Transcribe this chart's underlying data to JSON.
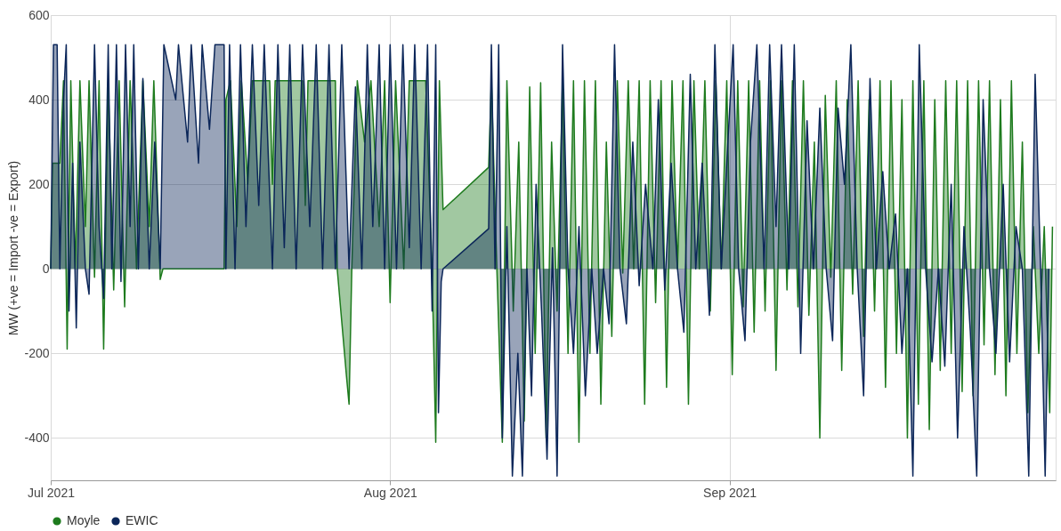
{
  "chart_data": {
    "type": "area",
    "ylabel": "MW (+ve = Import -ve = Export)",
    "ylim": [
      -500,
      600
    ],
    "yticks": [
      -400,
      -200,
      0,
      200,
      400,
      600
    ],
    "xlim": [
      "2021-07-01T00:00",
      "2021-09-30T19:00"
    ],
    "xticks": [
      {
        "value": "2021-07-01T00:00",
        "label": "Jul 2021"
      },
      {
        "value": "2021-08-01T00:00",
        "label": "Aug 2021"
      },
      {
        "value": "2021-09-01T00:00",
        "label": "Sep 2021"
      }
    ],
    "grid": true,
    "legend": "bottom",
    "marker": "none",
    "series": [
      {
        "name": "Moyle",
        "color": "#1e7b1e",
        "x": [
          "2021-07-01T00:00",
          "2021-07-01T04:00",
          "2021-07-01T20:00",
          "2021-07-02T04:00",
          "2021-07-02T12:00",
          "2021-07-02T20:00",
          "2021-07-03T06:00",
          "2021-07-03T16:00",
          "2021-07-04T04:00",
          "2021-07-04T12:00",
          "2021-07-05T00:00",
          "2021-07-05T10:00",
          "2021-07-05T20:00",
          "2021-07-06T06:00",
          "2021-07-06T18:00",
          "2021-07-07T06:00",
          "2021-07-07T18:00",
          "2021-07-08T06:00",
          "2021-07-08T20:00",
          "2021-07-09T10:00",
          "2021-07-10T00:00",
          "2021-07-10T10:00",
          "2021-07-11T00:00",
          "2021-07-11T06:00",
          "2021-07-16T20:00",
          "2021-07-17T00:00",
          "2021-07-17T10:00",
          "2021-07-18T00:00",
          "2021-07-18T10:00",
          "2021-07-19T00:00",
          "2021-07-19T10:00",
          "2021-07-21T00:00",
          "2021-07-21T06:00",
          "2021-07-21T12:00",
          "2021-07-24T00:00",
          "2021-07-24T06:00",
          "2021-07-24T12:00",
          "2021-07-27T00:00",
          "2021-07-27T04:00",
          "2021-07-28T00:00",
          "2021-07-28T06:00",
          "2021-07-28T12:00",
          "2021-07-29T00:00",
          "2021-07-29T16:00",
          "2021-07-30T06:00",
          "2021-07-31T00:00",
          "2021-07-31T12:00",
          "2021-08-01T00:00",
          "2021-08-01T12:00",
          "2021-08-02T06:00",
          "2021-08-02T18:00",
          "2021-08-03T12:00",
          "2021-08-04T06:00",
          "2021-08-04T20:00",
          "2021-08-05T04:00",
          "2021-08-05T12:00",
          "2021-08-05T20:00",
          "2021-08-10T00:00",
          "2021-08-10T06:00",
          "2021-08-10T18:00",
          "2021-08-11T06:00",
          "2021-08-11T16:00",
          "2021-08-12T06:00",
          "2021-08-12T18:00",
          "2021-08-13T06:00",
          "2021-08-13T18:00",
          "2021-08-14T06:00",
          "2021-08-14T18:00",
          "2021-08-15T06:00",
          "2021-08-15T18:00",
          "2021-08-16T06:00",
          "2021-08-16T18:00",
          "2021-08-17T06:00",
          "2021-08-17T18:00",
          "2021-08-18T06:00",
          "2021-08-18T18:00",
          "2021-08-19T06:00",
          "2021-08-19T18:00",
          "2021-08-20T06:00",
          "2021-08-20T18:00",
          "2021-08-21T06:00",
          "2021-08-21T18:00",
          "2021-08-22T06:00",
          "2021-08-22T18:00",
          "2021-08-23T06:00",
          "2021-08-23T18:00",
          "2021-08-24T06:00",
          "2021-08-24T18:00",
          "2021-08-25T06:00",
          "2021-08-25T18:00",
          "2021-08-26T06:00",
          "2021-08-26T18:00",
          "2021-08-27T06:00",
          "2021-08-27T18:00",
          "2021-08-28T06:00",
          "2021-08-28T18:00",
          "2021-08-29T06:00",
          "2021-08-29T18:00",
          "2021-08-30T06:00",
          "2021-08-30T18:00",
          "2021-08-31T06:00",
          "2021-08-31T18:00",
          "2021-09-01T06:00",
          "2021-09-01T18:00",
          "2021-09-02T06:00",
          "2021-09-02T18:00",
          "2021-09-03T06:00",
          "2021-09-03T18:00",
          "2021-09-04T06:00",
          "2021-09-04T18:00",
          "2021-09-05T06:00",
          "2021-09-05T18:00",
          "2021-09-06T06:00",
          "2021-09-06T18:00",
          "2021-09-07T06:00",
          "2021-09-07T18:00",
          "2021-09-08T06:00",
          "2021-09-08T18:00",
          "2021-09-09T06:00",
          "2021-09-09T18:00",
          "2021-09-10T06:00",
          "2021-09-10T18:00",
          "2021-09-11T06:00",
          "2021-09-11T18:00",
          "2021-09-12T06:00",
          "2021-09-12T18:00",
          "2021-09-13T06:00",
          "2021-09-13T18:00",
          "2021-09-14T06:00",
          "2021-09-14T18:00",
          "2021-09-15T06:00",
          "2021-09-15T18:00",
          "2021-09-16T06:00",
          "2021-09-16T18:00",
          "2021-09-17T06:00",
          "2021-09-17T18:00",
          "2021-09-18T06:00",
          "2021-09-18T18:00",
          "2021-09-19T06:00",
          "2021-09-19T18:00",
          "2021-09-20T06:00",
          "2021-09-20T18:00",
          "2021-09-21T06:00",
          "2021-09-21T18:00",
          "2021-09-22T06:00",
          "2021-09-22T18:00",
          "2021-09-23T06:00",
          "2021-09-23T18:00",
          "2021-09-24T06:00",
          "2021-09-24T18:00",
          "2021-09-25T06:00",
          "2021-09-25T18:00",
          "2021-09-26T06:00",
          "2021-09-26T18:00",
          "2021-09-27T06:00",
          "2021-09-27T18:00",
          "2021-09-28T06:00",
          "2021-09-28T18:00",
          "2021-09-29T06:00",
          "2021-09-29T18:00",
          "2021-09-30T06:00",
          "2021-09-30T12:00"
        ],
        "values": [
          0,
          250,
          250,
          445,
          -190,
          445,
          0,
          445,
          100,
          445,
          -20,
          445,
          -190,
          445,
          -50,
          445,
          -90,
          445,
          0,
          445,
          100,
          445,
          -25,
          0,
          0,
          400,
          445,
          100,
          445,
          200,
          445,
          445,
          200,
          445,
          445,
          150,
          445,
          445,
          0,
          -250,
          -320,
          0,
          445,
          300,
          445,
          100,
          445,
          -80,
          445,
          0,
          445,
          445,
          445,
          0,
          -410,
          445,
          140,
          240,
          445,
          0,
          -410,
          445,
          -100,
          300,
          -360,
          430,
          -200,
          440,
          -400,
          300,
          -100,
          445,
          -200,
          445,
          -410,
          445,
          -200,
          445,
          -320,
          300,
          -160,
          445,
          -10,
          445,
          0,
          445,
          -320,
          445,
          -80,
          445,
          -280,
          445,
          0,
          445,
          -320,
          445,
          0,
          445,
          -100,
          445,
          0,
          445,
          -250,
          445,
          -90,
          445,
          -150,
          445,
          -100,
          445,
          -240,
          445,
          -50,
          445,
          -90,
          445,
          -110,
          300,
          -400,
          410,
          -20,
          445,
          -240,
          400,
          -60,
          445,
          -160,
          400,
          -100,
          445,
          -280,
          445,
          -200,
          400,
          -400,
          445,
          -320,
          445,
          -380,
          400,
          -240,
          445,
          -200,
          445,
          -290,
          445,
          -300,
          445,
          -180,
          445,
          -250,
          400,
          -300,
          445,
          -200,
          300,
          -340,
          100,
          -200,
          100,
          -340,
          100
        ]
      },
      {
        "name": "EWIC",
        "color": "#0b2659",
        "x": [
          "2021-07-01T00:00",
          "2021-07-01T06:00",
          "2021-07-01T14:00",
          "2021-07-01T20:00",
          "2021-07-02T04:00",
          "2021-07-02T10:00",
          "2021-07-02T16:00",
          "2021-07-03T00:00",
          "2021-07-03T08:00",
          "2021-07-03T16:00",
          "2021-07-04T04:00",
          "2021-07-04T12:00",
          "2021-07-05T00:00",
          "2021-07-05T10:00",
          "2021-07-05T20:00",
          "2021-07-06T06:00",
          "2021-07-06T14:00",
          "2021-07-07T00:00",
          "2021-07-07T10:00",
          "2021-07-07T20:00",
          "2021-07-08T06:00",
          "2021-07-08T14:00",
          "2021-07-09T00:00",
          "2021-07-09T10:00",
          "2021-07-10T00:00",
          "2021-07-10T12:00",
          "2021-07-11T00:00",
          "2021-07-11T08:00",
          "2021-07-12T10:00",
          "2021-07-12T16:00",
          "2021-07-13T12:00",
          "2021-07-13T20:00",
          "2021-07-14T12:00",
          "2021-07-14T20:00",
          "2021-07-15T12:00",
          "2021-07-16T00:00",
          "2021-07-16T20:00",
          "2021-07-17T00:00",
          "2021-07-17T08:00",
          "2021-07-17T20:00",
          "2021-07-18T08:00",
          "2021-07-18T20:00",
          "2021-07-19T10:00",
          "2021-07-20T00:00",
          "2021-07-20T12:00",
          "2021-07-21T06:00",
          "2021-07-21T18:00",
          "2021-07-22T08:00",
          "2021-07-22T20:00",
          "2021-07-23T10:00",
          "2021-07-24T00:00",
          "2021-07-24T16:00",
          "2021-07-25T06:00",
          "2021-07-25T20:00",
          "2021-07-26T10:00",
          "2021-07-27T00:00",
          "2021-07-27T14:00",
          "2021-07-28T06:00",
          "2021-07-28T20:00",
          "2021-07-29T10:00",
          "2021-07-29T22:00",
          "2021-07-30T10:00",
          "2021-07-31T00:00",
          "2021-07-31T12:00",
          "2021-08-01T00:00",
          "2021-08-01T14:00",
          "2021-08-02T04:00",
          "2021-08-02T18:00",
          "2021-08-03T06:00",
          "2021-08-03T20:00",
          "2021-08-04T10:00",
          "2021-08-04T20:00",
          "2021-08-05T04:00",
          "2021-08-05T10:00",
          "2021-08-05T16:00",
          "2021-08-05T20:00",
          "2021-08-10T00:00",
          "2021-08-10T06:00",
          "2021-08-10T14:00",
          "2021-08-10T22:00",
          "2021-08-11T06:00",
          "2021-08-11T16:00",
          "2021-08-12T04:00",
          "2021-08-12T16:00",
          "2021-08-13T02:00",
          "2021-08-13T12:00",
          "2021-08-13T22:00",
          "2021-08-14T08:00",
          "2021-08-14T20:00",
          "2021-08-15T08:00",
          "2021-08-15T20:00",
          "2021-08-16T06:00",
          "2021-08-16T18:00",
          "2021-08-17T06:00",
          "2021-08-17T18:00",
          "2021-08-18T06:00",
          "2021-08-18T20:00",
          "2021-08-19T10:00",
          "2021-08-19T22:00",
          "2021-08-20T12:00",
          "2021-08-21T00:00",
          "2021-08-21T12:00",
          "2021-08-22T00:00",
          "2021-08-22T14:00",
          "2021-08-23T04:00",
          "2021-08-23T18:00",
          "2021-08-24T08:00",
          "2021-08-25T00:00",
          "2021-08-25T12:00",
          "2021-08-26T02:00",
          "2021-08-26T16:00",
          "2021-08-27T06:00",
          "2021-08-27T20:00",
          "2021-08-28T10:00",
          "2021-08-28T22:00",
          "2021-08-29T12:00",
          "2021-08-30T04:00",
          "2021-08-30T16:00",
          "2021-08-31T06:00",
          "2021-08-31T18:00",
          "2021-09-01T08:00",
          "2021-09-01T20:00",
          "2021-09-02T10:00",
          "2021-09-02T22:00",
          "2021-09-03T12:00",
          "2021-09-04T04:00",
          "2021-09-04T16:00",
          "2021-09-05T06:00",
          "2021-09-05T18:00",
          "2021-09-06T10:00",
          "2021-09-06T22:00",
          "2021-09-07T12:00",
          "2021-09-08T02:00",
          "2021-09-08T16:00",
          "2021-09-09T06:00",
          "2021-09-09T20:00",
          "2021-09-10T10:00",
          "2021-09-10T22:00",
          "2021-09-11T12:00",
          "2021-09-12T02:00",
          "2021-09-12T16:00",
          "2021-09-13T06:00",
          "2021-09-13T20:00",
          "2021-09-14T10:00",
          "2021-09-15T00:00",
          "2021-09-15T14:00",
          "2021-09-16T04:00",
          "2021-09-16T18:00",
          "2021-09-17T06:00",
          "2021-09-17T18:00",
          "2021-09-18T08:00",
          "2021-09-18T22:00",
          "2021-09-19T12:00",
          "2021-09-20T02:00",
          "2021-09-20T16:00",
          "2021-09-21T06:00",
          "2021-09-21T20:00",
          "2021-09-22T10:00",
          "2021-09-23T00:00",
          "2021-09-23T14:00",
          "2021-09-24T04:00",
          "2021-09-24T18:00",
          "2021-09-25T08:00",
          "2021-09-26T00:00",
          "2021-09-26T14:00",
          "2021-09-27T04:00",
          "2021-09-27T18:00",
          "2021-09-28T08:00",
          "2021-09-28T22:00",
          "2021-09-29T10:00",
          "2021-09-29T20:00",
          "2021-09-30T04:00"
        ],
        "values": [
          0,
          530,
          530,
          0,
          400,
          530,
          -100,
          250,
          -140,
          300,
          0,
          -60,
          530,
          100,
          -70,
          530,
          0,
          530,
          -30,
          530,
          100,
          530,
          0,
          450,
          0,
          300,
          0,
          530,
          400,
          530,
          300,
          530,
          250,
          530,
          330,
          530,
          530,
          0,
          530,
          0,
          530,
          100,
          530,
          150,
          530,
          0,
          530,
          50,
          530,
          0,
          530,
          100,
          530,
          0,
          530,
          0,
          530,
          0,
          430,
          0,
          530,
          100,
          530,
          0,
          530,
          0,
          530,
          50,
          530,
          0,
          530,
          -100,
          530,
          -340,
          -30,
          0,
          95,
          530,
          0,
          530,
          -400,
          100,
          -490,
          -200,
          -490,
          0,
          -300,
          200,
          -100,
          -450,
          50,
          -490,
          530,
          0,
          -200,
          100,
          -300,
          0,
          -200,
          0,
          -130,
          530,
          0,
          -130,
          300,
          -40,
          200,
          0,
          400,
          -50,
          250,
          0,
          -150,
          460,
          0,
          250,
          -110,
          530,
          0,
          250,
          530,
          0,
          -170,
          300,
          530,
          0,
          530,
          100,
          530,
          0,
          530,
          -200,
          350,
          0,
          380,
          0,
          -170,
          380,
          200,
          530,
          0,
          -300,
          450,
          0,
          230,
          0,
          130,
          -200,
          0,
          -490,
          530,
          0,
          -220,
          0,
          -230,
          200,
          -400,
          100,
          -150,
          -490,
          400,
          0,
          -200,
          200,
          -220,
          100,
          0,
          -490,
          460,
          0,
          -490,
          0
        ]
      }
    ]
  }
}
